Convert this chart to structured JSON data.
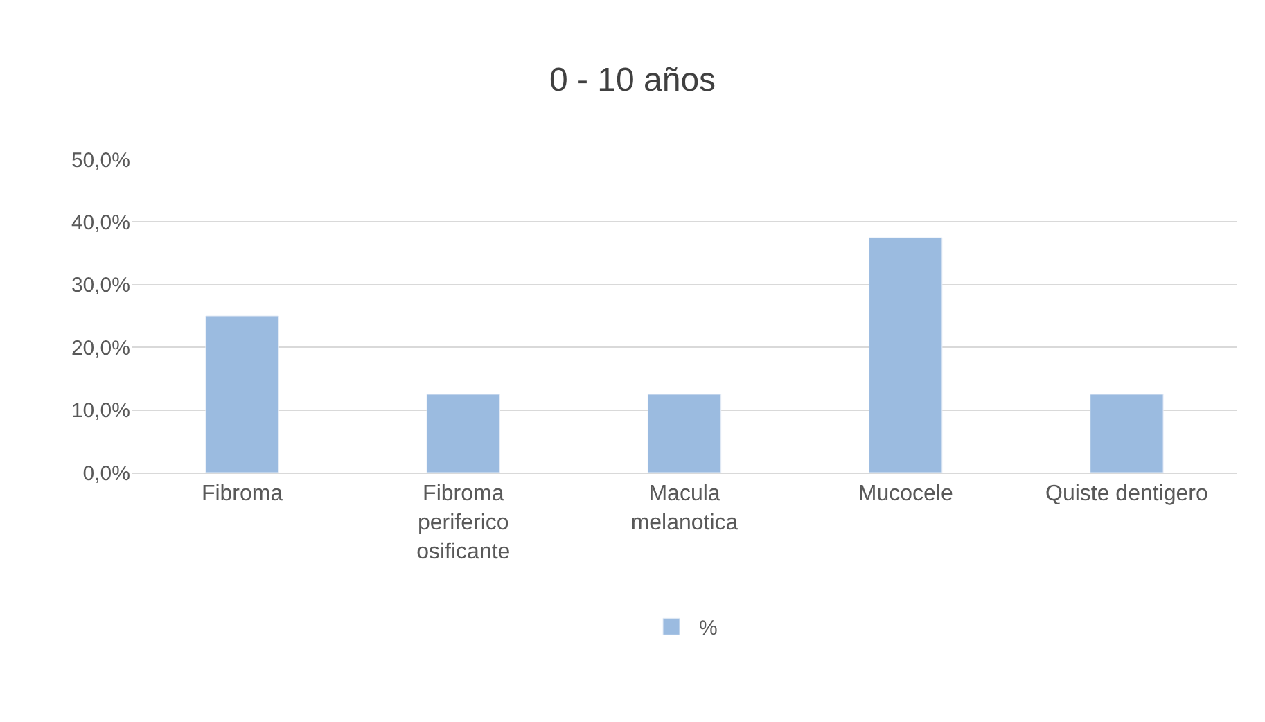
{
  "chart_data": {
    "type": "bar",
    "title": "0 - 10 años",
    "categories": [
      "Fibroma",
      "Fibroma periferico osificante",
      "Macula melanotica",
      "Mucocele",
      "Quiste dentigero"
    ],
    "series": [
      {
        "name": "%",
        "color": "#9bbbe0",
        "values": [
          25.0,
          12.5,
          12.5,
          37.5,
          12.5
        ]
      }
    ],
    "ylim": [
      0,
      50
    ],
    "yticks": [
      {
        "value": 0,
        "label": "0,0%"
      },
      {
        "value": 10,
        "label": "10,0%"
      },
      {
        "value": 20,
        "label": "20,0%"
      },
      {
        "value": 30,
        "label": "30,0%"
      },
      {
        "value": 40,
        "label": "40,0%"
      },
      {
        "value": 50,
        "label": "50,0%"
      }
    ],
    "grid": "y",
    "legend": "bottom"
  }
}
